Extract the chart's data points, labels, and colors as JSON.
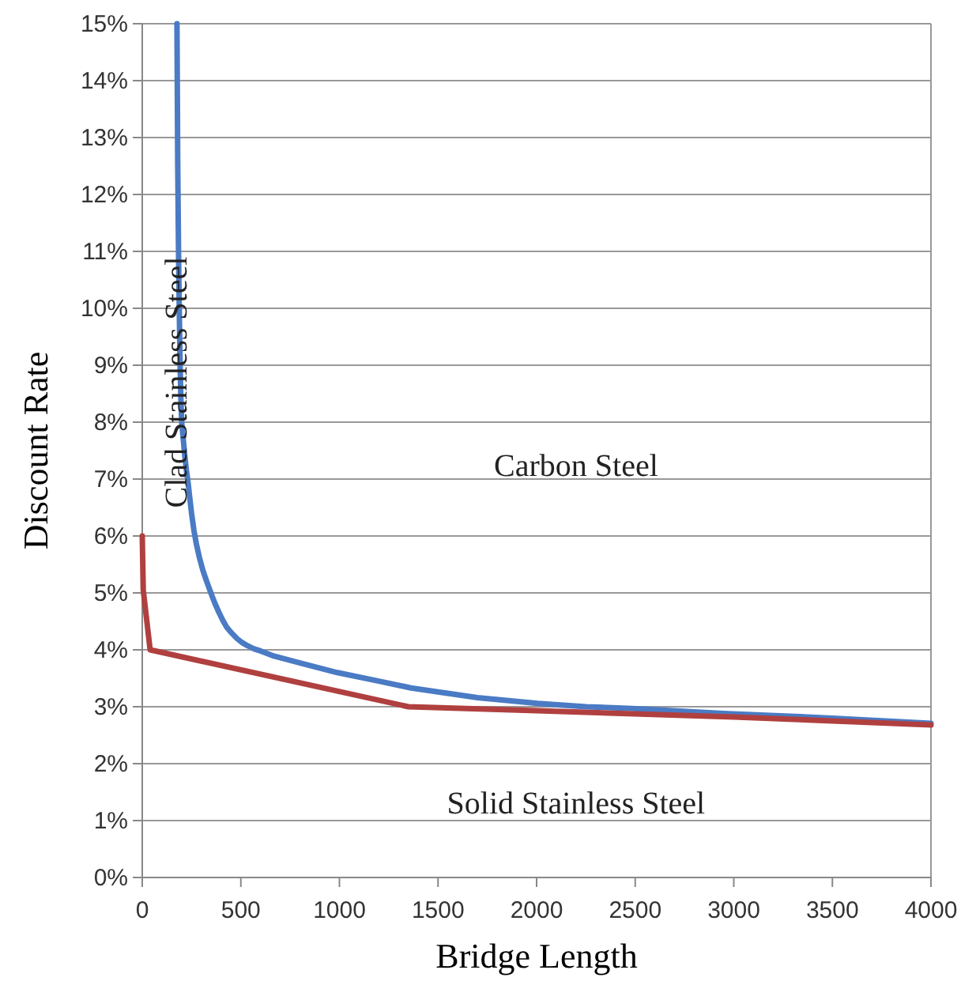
{
  "chart_data": {
    "type": "line",
    "xlabel": "Bridge Length",
    "ylabel": "Discount Rate",
    "xlim": [
      0,
      4000
    ],
    "xticks": [
      0,
      500,
      1000,
      1500,
      2000,
      2500,
      3000,
      3500,
      4000
    ],
    "ylim": [
      0,
      15
    ],
    "yticks": [
      {
        "value": 0,
        "label": "0%"
      },
      {
        "value": 1,
        "label": "1%"
      },
      {
        "value": 2,
        "label": "2%"
      },
      {
        "value": 3,
        "label": "3%"
      },
      {
        "value": 4,
        "label": "4%"
      },
      {
        "value": 5,
        "label": "5%"
      },
      {
        "value": 6,
        "label": "6%"
      },
      {
        "value": 7,
        "label": "7%"
      },
      {
        "value": 8,
        "label": "8%"
      },
      {
        "value": 9,
        "label": "9%"
      },
      {
        "value": 10,
        "label": "10%"
      },
      {
        "value": 11,
        "label": "11%"
      },
      {
        "value": 12,
        "label": "12%"
      },
      {
        "value": 13,
        "label": "13%"
      },
      {
        "value": 14,
        "label": "14%"
      },
      {
        "value": 15,
        "label": "15%"
      }
    ],
    "grid": "y",
    "marker": "none",
    "line_style": "solid",
    "series": [
      {
        "color": "#4a7bc4",
        "x": [
          176,
          180,
          184,
          188,
          192,
          196,
          200,
          208,
          216,
          224,
          232,
          240,
          250,
          262,
          275,
          290,
          307,
          327,
          348,
          368,
          390,
          408,
          428,
          452,
          480,
          505,
          535,
          565,
          600,
          668,
          800,
          989,
          1200,
          1363,
          1500,
          1700,
          2005,
          2250,
          2486,
          2967,
          3500,
          4000
        ],
        "values": [
          15,
          12.5,
          11,
          9.9,
          9,
          8.4,
          8,
          7.7,
          7.4,
          7.15,
          6.95,
          6.7,
          6.4,
          6.1,
          5.85,
          5.62,
          5.4,
          5.2,
          5.0,
          4.82,
          4.65,
          4.52,
          4.4,
          4.3,
          4.2,
          4.13,
          4.07,
          4.02,
          3.98,
          3.89,
          3.77,
          3.6,
          3.45,
          3.33,
          3.26,
          3.16,
          3.06,
          3.0,
          2.97,
          2.88,
          2.8,
          2.71
        ]
      },
      {
        "color": "#b0403f",
        "x": [
          0,
          5,
          40,
          1350,
          2000,
          3000,
          4000
        ],
        "values": [
          6,
          5.05,
          4,
          3,
          2.93,
          2.82,
          2.68
        ]
      }
    ],
    "annotations": [
      "Carbon Steel",
      "Clad Stainless Steel",
      "Solid Stainless Steel"
    ]
  }
}
